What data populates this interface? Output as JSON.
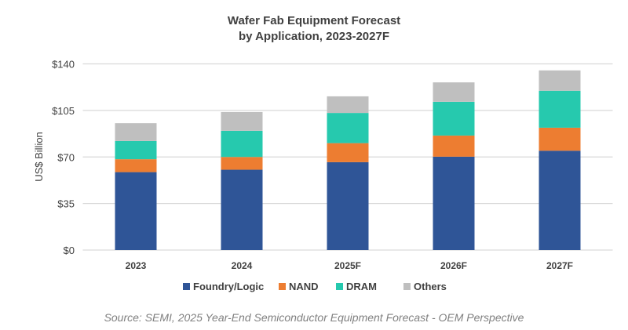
{
  "chart_data": {
    "type": "bar",
    "stacked": true,
    "title": [
      "Wafer Fab Equipment Forecast",
      "by Application, 2023-2027F"
    ],
    "xlabel": "",
    "ylabel": "US$ Billion",
    "ylim": [
      0,
      140
    ],
    "yticks": [
      0,
      35,
      70,
      105,
      140
    ],
    "ytick_labels": [
      "$0",
      "$35",
      "$70",
      "$105",
      "$140"
    ],
    "grid": true,
    "legend_position": "bottom",
    "categories": [
      "2023",
      "2024",
      "2025F",
      "2026F",
      "2027F"
    ],
    "series": [
      {
        "name": "Foundry/Logic",
        "color": "#2F5597",
        "values": [
          58.6,
          60.4,
          66.1,
          70.2,
          74.7
        ]
      },
      {
        "name": "NAND",
        "color": "#ED7D31",
        "values": [
          9.7,
          9.6,
          14.3,
          15.9,
          17.3
        ]
      },
      {
        "name": "DRAM",
        "color": "#26C9AE",
        "values": [
          13.7,
          19.7,
          22.7,
          25.4,
          27.8
        ]
      },
      {
        "name": "Others",
        "color": "#BFBFBF",
        "values": [
          13.4,
          14.1,
          12.5,
          14.6,
          15.3
        ]
      }
    ],
    "source": "Source: SEMI, 2025 Year-End Semiconductor Equipment Forecast - OEM Perspective"
  }
}
